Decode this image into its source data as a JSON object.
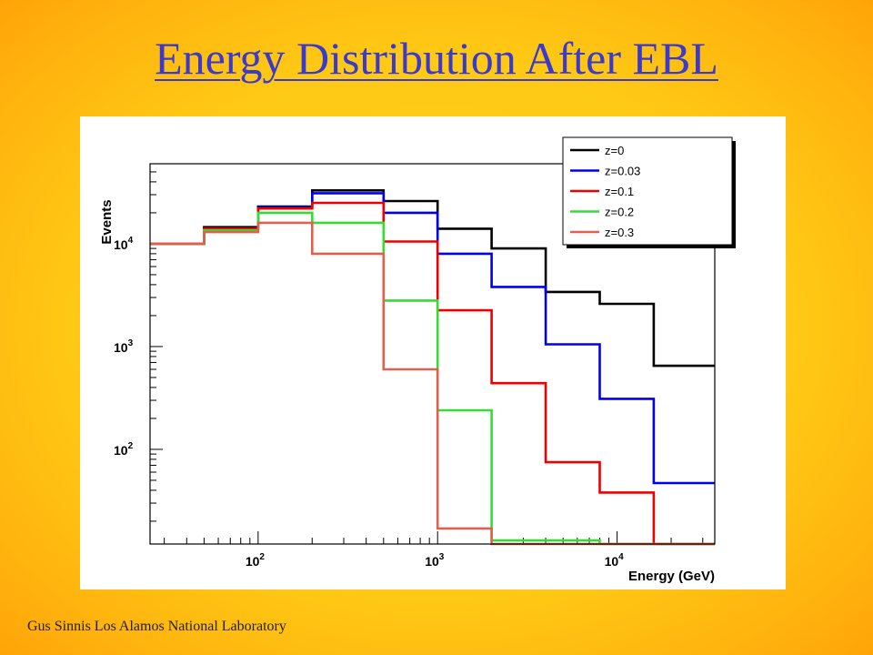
{
  "slide": {
    "title": "Energy Distribution After EBL",
    "footer": "Gus Sinnis Los Alamos National Laboratory"
  },
  "chart_data": {
    "type": "line",
    "subtype": "step-histogram",
    "xlabel": "Energy (GeV)",
    "ylabel": "Events",
    "x_scale": "log",
    "y_scale": "log",
    "xlim": [
      25,
      35000
    ],
    "ylim": [
      12,
      60000
    ],
    "x_ticks": [
      {
        "value": 100,
        "base": "10",
        "exp": "2"
      },
      {
        "value": 1000,
        "base": "10",
        "exp": "3"
      },
      {
        "value": 10000,
        "base": "10",
        "exp": "4"
      }
    ],
    "y_ticks": [
      {
        "value": 100,
        "base": "10",
        "exp": "2"
      },
      {
        "value": 1000,
        "base": "10",
        "exp": "3"
      },
      {
        "value": 10000,
        "base": "10",
        "exp": "4"
      }
    ],
    "legend_position": "top-right",
    "bin_edges": [
      25,
      50,
      100,
      200,
      500,
      1000,
      2000,
      4000,
      8000,
      16000,
      35000
    ],
    "series": [
      {
        "name": "z=0",
        "color": "#000000",
        "values": [
          10000,
          14500,
          23000,
          33000,
          26000,
          14000,
          9000,
          3400,
          2600,
          650
        ]
      },
      {
        "name": "z=0.03",
        "color": "#0000ee",
        "values": [
          10000,
          14000,
          22500,
          31000,
          20000,
          8000,
          3800,
          1050,
          310,
          47
        ]
      },
      {
        "name": "z=0.1",
        "color": "#ee0000",
        "values": [
          10000,
          14000,
          22000,
          25000,
          10500,
          2250,
          440,
          75,
          38,
          12
        ]
      },
      {
        "name": "z=0.2",
        "color": "#33dd33",
        "values": [
          10000,
          13500,
          20000,
          16000,
          2800,
          240,
          13,
          13,
          12,
          12
        ]
      },
      {
        "name": "z=0.3",
        "color": "#e06050",
        "values": [
          10000,
          13000,
          16000,
          8000,
          600,
          17,
          12,
          12,
          12,
          12
        ]
      }
    ]
  }
}
